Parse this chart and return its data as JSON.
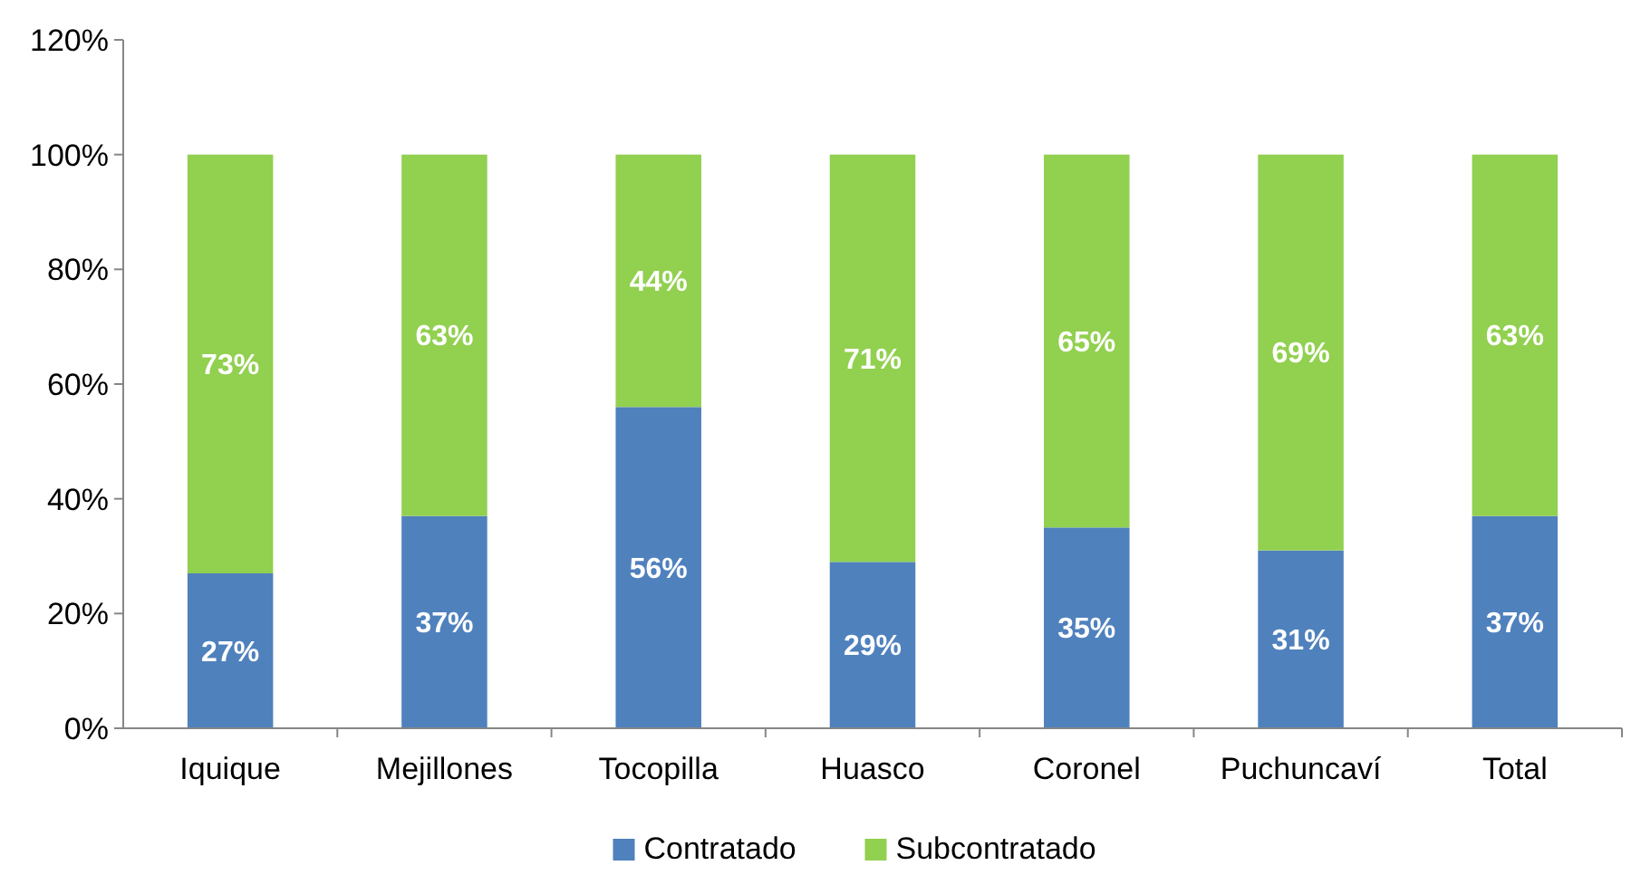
{
  "chart_data": {
    "type": "bar",
    "stacked": true,
    "categories": [
      "Iquique",
      "Mejillones",
      "Tocopilla",
      "Huasco",
      "Coronel",
      "Puchuncaví",
      "Total"
    ],
    "series": [
      {
        "name": "Contratado",
        "color": "#4f81bd",
        "values": [
          27,
          37,
          56,
          29,
          35,
          31,
          37
        ],
        "value_labels": [
          "27%",
          "37%",
          "56%",
          "29%",
          "35%",
          "31%",
          "37%"
        ]
      },
      {
        "name": "Subcontratado",
        "color": "#92d050",
        "values": [
          73,
          63,
          44,
          71,
          65,
          69,
          63
        ],
        "value_labels": [
          "73%",
          "63%",
          "44%",
          "71%",
          "65%",
          "69%",
          "63%"
        ]
      }
    ],
    "ylim": [
      0,
      120
    ],
    "yticks": [
      {
        "value": 0,
        "label": "0%"
      },
      {
        "value": 20,
        "label": "20%"
      },
      {
        "value": 40,
        "label": "40%"
      },
      {
        "value": 60,
        "label": "60%"
      },
      {
        "value": 80,
        "label": "80%"
      },
      {
        "value": 100,
        "label": "100%"
      },
      {
        "value": 120,
        "label": "120%"
      }
    ],
    "grid": false,
    "legend": "bottom"
  }
}
